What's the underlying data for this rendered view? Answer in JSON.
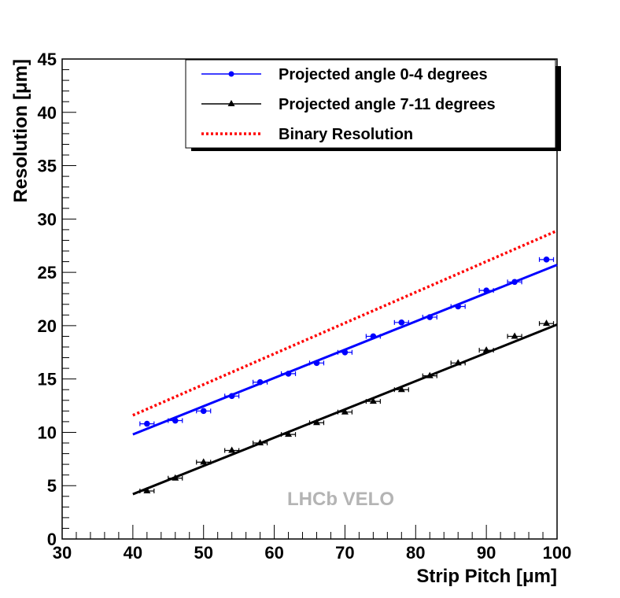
{
  "chart_data": {
    "type": "scatter",
    "xlabel": "Strip Pitch [μm]",
    "ylabel": "Resolution [μm]",
    "xlim": [
      30,
      100
    ],
    "ylim": [
      0,
      45
    ],
    "x_major_ticks": [
      30,
      40,
      50,
      60,
      70,
      80,
      90,
      100
    ],
    "y_major_ticks": [
      0,
      5,
      10,
      15,
      20,
      25,
      30,
      35,
      40,
      45
    ],
    "x_tick_labels": [
      "30",
      "40",
      "50",
      "60",
      "70",
      "80",
      "90",
      "100"
    ],
    "y_tick_labels": [
      "0",
      "5",
      "10",
      "15",
      "20",
      "25",
      "30",
      "35",
      "40",
      "45"
    ],
    "watermark": "LHCb VELO",
    "legend_position": "top-right",
    "series": [
      {
        "name": "Projected angle 0-4 degrees",
        "color": "#0000ff",
        "marker": "circle",
        "x": [
          42,
          46,
          50,
          54,
          58,
          62,
          66,
          70,
          74,
          78,
          82,
          86,
          90,
          94,
          98.5
        ],
        "y": [
          10.8,
          11.1,
          12.0,
          13.4,
          14.7,
          15.5,
          16.5,
          17.5,
          19.0,
          20.3,
          20.8,
          21.8,
          23.3,
          24.1,
          26.2
        ],
        "x_err": 1,
        "fit": {
          "x": [
            40,
            100
          ],
          "y": [
            9.8,
            25.7
          ]
        }
      },
      {
        "name": "Projected angle 7-11 degrees",
        "color": "#000000",
        "marker": "triangle",
        "x": [
          42,
          46,
          50,
          54,
          58,
          62,
          66,
          70,
          74,
          78,
          82,
          86,
          90,
          94,
          98.5
        ],
        "y": [
          4.5,
          5.7,
          7.2,
          8.3,
          9.0,
          9.8,
          10.9,
          11.9,
          12.9,
          14.0,
          15.3,
          16.5,
          17.7,
          19.0,
          20.2
        ],
        "x_err": 1,
        "fit": {
          "x": [
            40,
            100
          ],
          "y": [
            4.2,
            20.1
          ]
        }
      },
      {
        "name": "Binary Resolution",
        "color": "#ff0000",
        "line_style": "dotted",
        "line": {
          "x": [
            40,
            100
          ],
          "y": [
            11.6,
            28.9
          ]
        }
      }
    ]
  }
}
